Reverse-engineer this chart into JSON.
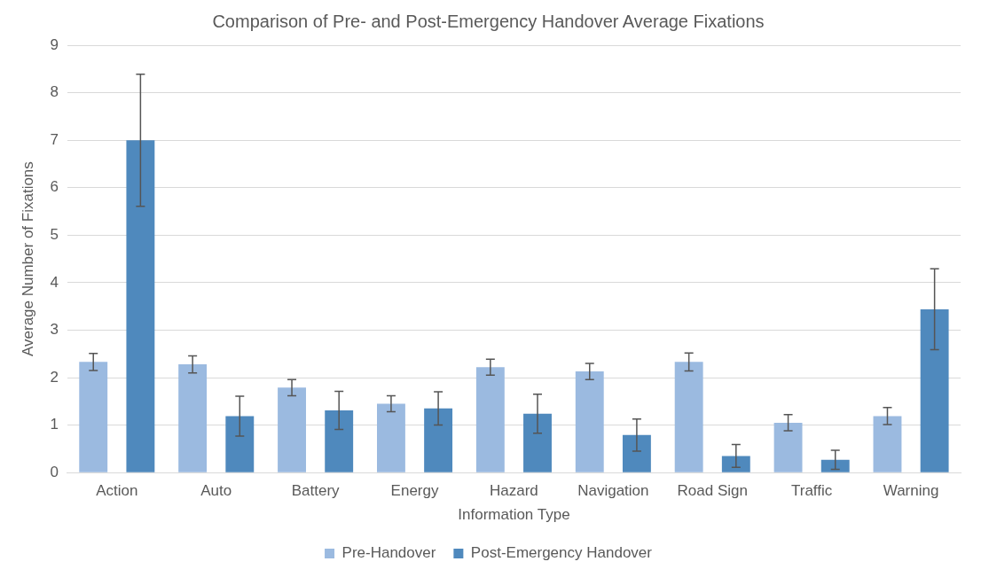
{
  "chart_data": {
    "type": "bar",
    "title": "Comparison of Pre- and Post-Emergency Handover Average Fixations",
    "xlabel": "Information Type",
    "ylabel": "Average Number of Fixations",
    "categories": [
      "Action",
      "Auto",
      "Battery",
      "Energy",
      "Hazard",
      "Navigation",
      "Road Sign",
      "Traffic",
      "Warning"
    ],
    "series": [
      {
        "name": "Pre-Handover",
        "color": "#9bbae0",
        "values": [
          2.33,
          2.28,
          1.79,
          1.45,
          2.22,
          2.13,
          2.33,
          1.05,
          1.19
        ],
        "errors": [
          0.18,
          0.18,
          0.17,
          0.17,
          0.17,
          0.17,
          0.19,
          0.17,
          0.18
        ]
      },
      {
        "name": "Post-Emergency Handover",
        "color": "#4f89bd",
        "values": [
          7.0,
          1.19,
          1.31,
          1.35,
          1.24,
          0.79,
          0.35,
          0.27,
          3.44
        ],
        "errors": [
          1.39,
          0.42,
          0.4,
          0.35,
          0.41,
          0.34,
          0.24,
          0.2,
          0.85
        ]
      }
    ],
    "ylim": [
      0,
      9
    ],
    "yticks": [
      0,
      1,
      2,
      3,
      4,
      5,
      6,
      7,
      8,
      9
    ],
    "grid": "y",
    "legend": "bottom"
  }
}
